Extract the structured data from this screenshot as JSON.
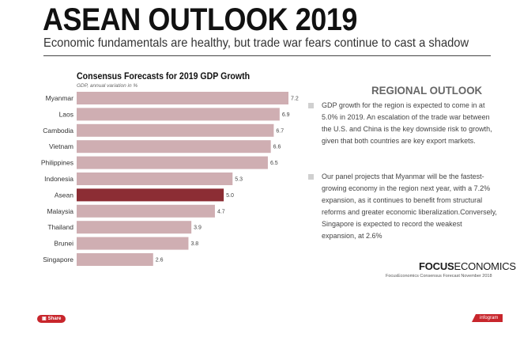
{
  "header": {
    "title": "ASEAN OUTLOOK 2019",
    "subtitle": "Economic fundamentals are healthy, but trade war fears continue to cast a shadow"
  },
  "chart_data": {
    "type": "bar",
    "orientation": "horizontal",
    "title": "Consensus Forecasts for 2019 GDP Growth",
    "subtitle": "GDP, annual variation in %",
    "categories": [
      "Myanmar",
      "Laos",
      "Cambodia",
      "Vietnam",
      "Philippines",
      "Indonesia",
      "Asean",
      "Malaysia",
      "Thailand",
      "Brunei",
      "Singapore"
    ],
    "values": [
      7.2,
      6.9,
      6.7,
      6.6,
      6.5,
      5.3,
      5.0,
      4.7,
      3.9,
      3.8,
      2.6
    ],
    "value_labels": [
      "7.2",
      "6.9",
      "6.7",
      "6.6",
      "6.5",
      "5.3",
      "5.0",
      "4.7",
      "3.9",
      "3.8",
      "2.6"
    ],
    "highlight": "Asean",
    "xlim": [
      0,
      7.2
    ],
    "colors": {
      "bar": "#cfaeb2",
      "highlight": "#8c2d34"
    }
  },
  "outlook": {
    "heading": "REGIONAL OUTLOOK",
    "bullets": [
      "GDP growth for the region is expected to come in at 5.0% in 2019. An escalation of the trade war between the U.S. and China is the key downside risk to growth, given that both countries are key export markets.",
      "Our panel projects that Myanmar will be the fastest-growing economy in the region next year, with a 7.2% expansion, as it continues to benefit from structural reforms and greater economic liberalization.Conversely, Singapore is expected to record the weakest expansion, at 2.6%"
    ]
  },
  "footer": {
    "brand_strong": "FOCUS",
    "brand_light": "ECONOMICS",
    "source": "FocusEconomics Consensus Forecast November 2018",
    "share_label": "Share",
    "infogram_label": "infogram"
  }
}
